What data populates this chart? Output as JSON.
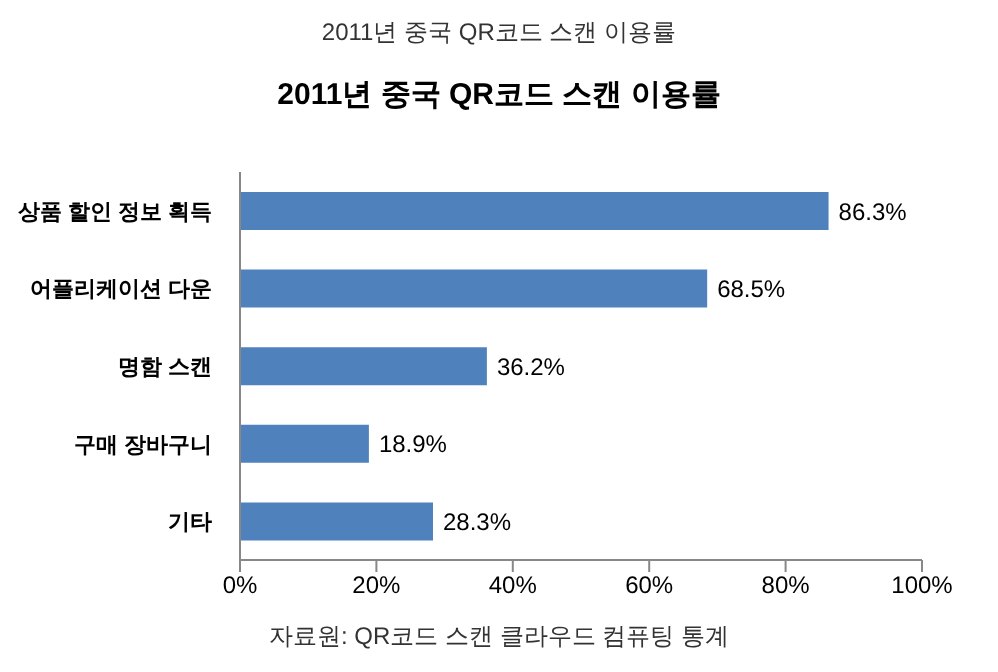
{
  "chart_data": {
    "type": "bar",
    "orientation": "horizontal",
    "title": "2011년 중국 QR코드 스캔 이용률",
    "annotations": [
      "2011년 중국 QR코드 스캔 이용률",
      "자료원: QR코드 스캔 클라우드 컴퓨팅 통계"
    ],
    "categories": [
      "상품 할인 정보 획득",
      "어플리케이션 다운",
      "명함 스캔",
      "구매 장바구니",
      "기타"
    ],
    "values": [
      86.3,
      68.5,
      36.2,
      18.9,
      28.3
    ],
    "value_labels": [
      "86.3%",
      "68.5%",
      "36.2%",
      "18.9%",
      "28.3%"
    ],
    "color": "#4f81bd",
    "xlim": [
      0,
      100
    ],
    "xticks": [
      {
        "value": 0,
        "label": "0%"
      },
      {
        "value": 20,
        "label": "20%"
      },
      {
        "value": 40,
        "label": "40%"
      },
      {
        "value": 60,
        "label": "60%"
      },
      {
        "value": 80,
        "label": "80%"
      },
      {
        "value": 100,
        "label": "100%"
      }
    ],
    "grid": false,
    "legend": false
  }
}
